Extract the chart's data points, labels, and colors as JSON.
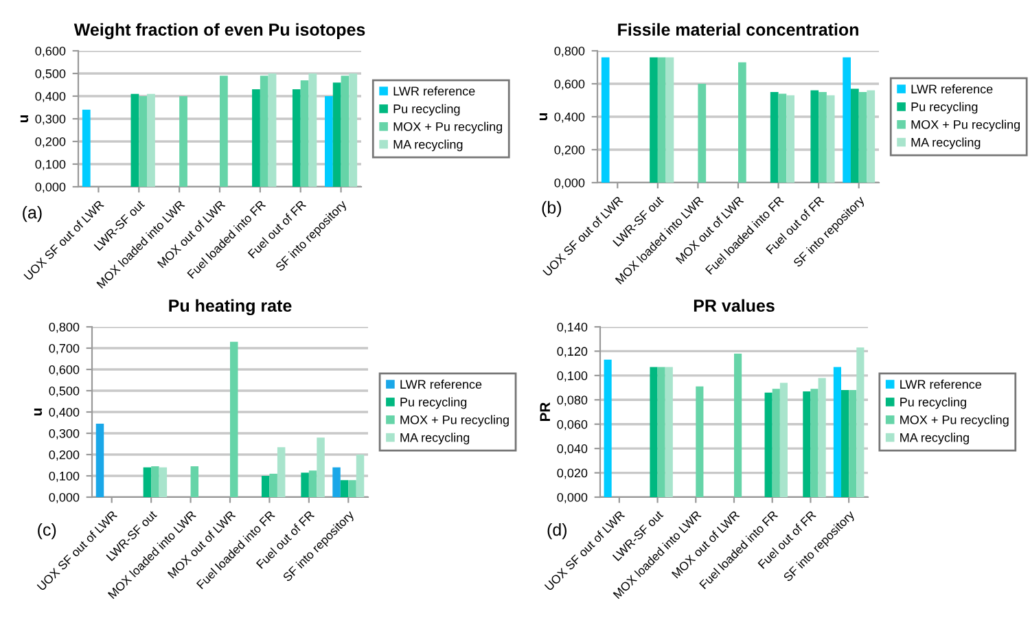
{
  "chart_data": [
    {
      "type": "bar",
      "title": "Weight fraction of even Pu isotopes",
      "ylabel": "u",
      "annotations": [
        "(a)"
      ],
      "categories": [
        "UOX SF out of LWR",
        "LWR-SF out",
        "MOX loaded into LWR",
        "MOX out of LWR",
        "Fuel loaded into FR",
        "Fuel out of FR",
        "SF into repository"
      ],
      "series": [
        {
          "name": "LWR reference",
          "color": "#00ccff",
          "values": [
            0.34,
            null,
            null,
            null,
            null,
            null,
            0.4
          ]
        },
        {
          "name": "Pu recycling",
          "color": "#00b880",
          "values": [
            null,
            0.41,
            null,
            null,
            0.43,
            0.43,
            0.46
          ]
        },
        {
          "name": "MOX + Pu recycling",
          "color": "#66d4a8",
          "values": [
            null,
            0.4,
            0.4,
            0.49,
            0.49,
            0.47,
            0.49
          ]
        },
        {
          "name": "MA recycling",
          "color": "#a8e4cc",
          "values": [
            null,
            0.41,
            null,
            null,
            0.5,
            0.5,
            0.5
          ]
        }
      ],
      "ylim": [
        0,
        0.6
      ],
      "yticks": [
        {
          "value": 0,
          "label": "0,000"
        },
        {
          "value": 0.1,
          "label": "0,100"
        },
        {
          "value": 0.2,
          "label": "0,200"
        },
        {
          "value": 0.3,
          "label": "0,300"
        },
        {
          "value": 0.4,
          "label": "0,400"
        },
        {
          "value": 0.5,
          "label": "0,500"
        },
        {
          "value": 0.6,
          "label": "0,600"
        }
      ],
      "grid": "y",
      "legend": "right"
    },
    {
      "type": "bar",
      "title": "Fissile material concentration",
      "ylabel": "u",
      "annotations": [
        "(b)"
      ],
      "categories": [
        "UOX SF out of LWR",
        "LWR-SF out",
        "MOX loaded into LWR",
        "MOX out of LWR",
        "Fuel loaded into FR",
        "Fuel out of FR",
        "SF into repository"
      ],
      "series": [
        {
          "name": "LWR reference",
          "color": "#00ccff",
          "values": [
            0.76,
            null,
            null,
            null,
            null,
            null,
            0.76
          ]
        },
        {
          "name": "Pu recycling",
          "color": "#00b880",
          "values": [
            null,
            0.76,
            null,
            null,
            0.55,
            0.56,
            0.57
          ]
        },
        {
          "name": "MOX + Pu recycling",
          "color": "#66d4a8",
          "values": [
            null,
            0.76,
            0.6,
            0.73,
            0.54,
            0.55,
            0.55
          ]
        },
        {
          "name": "MA recycling",
          "color": "#a8e4cc",
          "values": [
            null,
            0.76,
            null,
            null,
            0.53,
            0.53,
            0.56
          ]
        }
      ],
      "ylim": [
        0,
        0.8
      ],
      "yticks": [
        {
          "value": 0,
          "label": "0,000"
        },
        {
          "value": 0.2,
          "label": "0,200"
        },
        {
          "value": 0.4,
          "label": "0,400"
        },
        {
          "value": 0.6,
          "label": "0,600"
        },
        {
          "value": 0.8,
          "label": "0,800"
        }
      ],
      "grid": "y",
      "legend": "right"
    },
    {
      "type": "bar",
      "title": "Pu heating rate",
      "ylabel": "u",
      "annotations": [
        "(c)"
      ],
      "categories": [
        "UOX SF out of LWR",
        "LWR-SF out",
        "MOX loaded into LWR",
        "MOX out of LWR",
        "Fuel loaded into FR",
        "Fuel out of FR",
        "SF into repository"
      ],
      "series": [
        {
          "name": "LWR reference",
          "color": "#1aa7e8",
          "values": [
            0.345,
            null,
            null,
            null,
            null,
            null,
            0.14
          ]
        },
        {
          "name": "Pu recycling",
          "color": "#00b880",
          "values": [
            null,
            0.14,
            null,
            null,
            0.1,
            0.115,
            0.08
          ]
        },
        {
          "name": "MOX + Pu recycling",
          "color": "#66d4a8",
          "values": [
            null,
            0.145,
            0.145,
            0.73,
            0.11,
            0.125,
            0.08
          ]
        },
        {
          "name": "MA recycling",
          "color": "#a8e4cc",
          "values": [
            null,
            0.14,
            null,
            null,
            0.235,
            0.28,
            0.2
          ]
        }
      ],
      "ylim": [
        0,
        0.8
      ],
      "yticks": [
        {
          "value": 0,
          "label": "0,000"
        },
        {
          "value": 0.1,
          "label": "0,100"
        },
        {
          "value": 0.2,
          "label": "0,200"
        },
        {
          "value": 0.3,
          "label": "0,300"
        },
        {
          "value": 0.4,
          "label": "0,400"
        },
        {
          "value": 0.5,
          "label": "0,500"
        },
        {
          "value": 0.6,
          "label": "0,600"
        },
        {
          "value": 0.7,
          "label": "0,700"
        },
        {
          "value": 0.8,
          "label": "0,800"
        }
      ],
      "grid": "y",
      "legend": "right"
    },
    {
      "type": "bar",
      "title": "PR values",
      "ylabel": "PR",
      "annotations": [
        "(d)"
      ],
      "categories": [
        "UOX SF out of LWR",
        "LWR-SF out",
        "MOX loaded into LWR",
        "MOX out of LWR",
        "Fuel loaded into FR",
        "Fuel out of FR",
        "SF into repository"
      ],
      "series": [
        {
          "name": "LWR reference",
          "color": "#00ccff",
          "values": [
            0.113,
            null,
            null,
            null,
            null,
            null,
            0.107
          ]
        },
        {
          "name": "Pu recycling",
          "color": "#00b880",
          "values": [
            null,
            0.107,
            null,
            null,
            0.086,
            0.087,
            0.088
          ]
        },
        {
          "name": "MOX + Pu recycling",
          "color": "#66d4a8",
          "values": [
            null,
            0.107,
            0.091,
            0.118,
            0.089,
            0.089,
            0.088
          ]
        },
        {
          "name": "MA recycling",
          "color": "#a8e4cc",
          "values": [
            null,
            0.107,
            null,
            null,
            0.094,
            0.098,
            0.123
          ]
        }
      ],
      "ylim": [
        0,
        0.14
      ],
      "yticks": [
        {
          "value": 0,
          "label": "0,000"
        },
        {
          "value": 0.02,
          "label": "0,020"
        },
        {
          "value": 0.04,
          "label": "0,040"
        },
        {
          "value": 0.06,
          "label": "0,060"
        },
        {
          "value": 0.08,
          "label": "0,080"
        },
        {
          "value": 0.1,
          "label": "0,100"
        },
        {
          "value": 0.12,
          "label": "0,120"
        },
        {
          "value": 0.14,
          "label": "0,140"
        }
      ],
      "grid": "y",
      "legend": "right"
    }
  ]
}
